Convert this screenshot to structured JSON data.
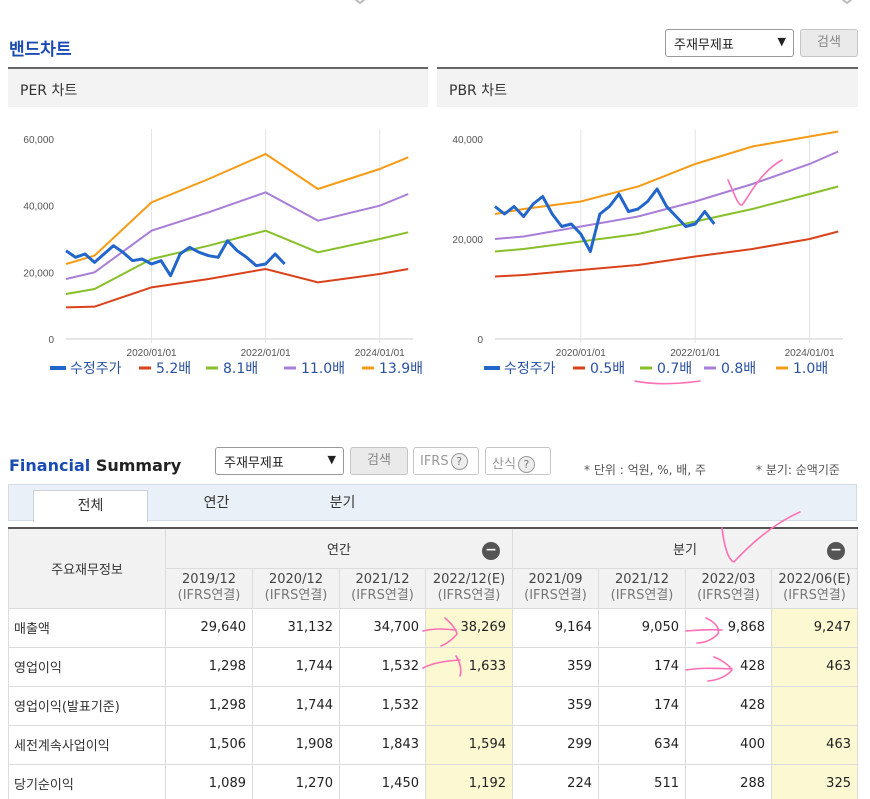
{
  "band": {
    "title": "밴드차트",
    "select_value": "주재무제표",
    "search_label": "검색"
  },
  "per_chart": {
    "title": "PER 차트",
    "yticks": [
      "60,000",
      "40,000",
      "20,000",
      "0"
    ],
    "xticks": [
      "2020/01/01",
      "2022/01/01",
      "2024/01/01"
    ],
    "legend": [
      "수정주가",
      "5.2배",
      "8.1배",
      "11.0배",
      "13.9배"
    ]
  },
  "pbr_chart": {
    "title": "PBR 차트",
    "yticks": [
      "40,000",
      "20,000",
      "0"
    ],
    "xticks": [
      "2020/01/01",
      "2022/01/01",
      "2024/01/01"
    ],
    "legend": [
      "수정주가",
      "0.5배",
      "0.7배",
      "0.8배",
      "1.0배"
    ]
  },
  "colors": {
    "price": "#2266cc",
    "band1": "#d9421a",
    "band2": "#88c02a",
    "band3": "#a97ed8",
    "band4": "#f59b16",
    "accent": "#1a4bb5",
    "annotation": "#ff6fb5"
  },
  "chart_data": [
    {
      "type": "line",
      "title": "PER 차트",
      "x": [
        "2018/07",
        "2019/01",
        "2020/01",
        "2021/01",
        "2022/01",
        "2022/12",
        "2024/01",
        "2024/07"
      ],
      "ylim": [
        0,
        60000
      ],
      "series": [
        {
          "name": "5.2배",
          "values": [
            9500,
            9700,
            15500,
            18000,
            21000,
            17000,
            19500,
            21000
          ]
        },
        {
          "name": "8.1배",
          "values": [
            13500,
            15000,
            24000,
            28000,
            32500,
            26000,
            30000,
            32000
          ]
        },
        {
          "name": "11.0배",
          "values": [
            18000,
            20000,
            32500,
            38000,
            44000,
            35500,
            40000,
            43500
          ]
        },
        {
          "name": "13.9배",
          "values": [
            22500,
            25000,
            41000,
            48000,
            55500,
            45000,
            51000,
            54500
          ]
        }
      ],
      "price": {
        "name": "수정주가",
        "x": [
          "2018/07",
          "2018/09",
          "2018/11",
          "2019/01",
          "2019/03",
          "2019/05",
          "2019/07",
          "2019/09",
          "2019/11",
          "2020/01",
          "2020/03",
          "2020/05",
          "2020/07",
          "2020/09",
          "2020/11",
          "2021/01",
          "2021/03",
          "2021/05",
          "2021/07",
          "2021/09",
          "2021/11",
          "2022/01",
          "2022/03",
          "2022/05"
        ],
        "values": [
          26500,
          24500,
          25500,
          23000,
          25500,
          28000,
          26000,
          23500,
          24000,
          22500,
          23500,
          19000,
          25500,
          27500,
          26000,
          25000,
          24500,
          29500,
          26500,
          24500,
          22000,
          22500,
          25500,
          22500
        ]
      }
    },
    {
      "type": "line",
      "title": "PBR 차트",
      "x": [
        "2018/07",
        "2019/01",
        "2020/01",
        "2021/01",
        "2022/01",
        "2023/01",
        "2024/01",
        "2024/07"
      ],
      "ylim": [
        0,
        40000
      ],
      "series": [
        {
          "name": "0.5배",
          "values": [
            12500,
            12800,
            13800,
            14800,
            16500,
            18000,
            20000,
            21500
          ]
        },
        {
          "name": "0.7배",
          "values": [
            17500,
            18000,
            19500,
            21000,
            23500,
            26000,
            29000,
            30500
          ]
        },
        {
          "name": "0.8배",
          "values": [
            20000,
            20500,
            22500,
            24500,
            27500,
            31000,
            35000,
            37500
          ]
        },
        {
          "name": "1.0배",
          "values": [
            25000,
            26000,
            27500,
            30500,
            35000,
            38500,
            40500,
            41500
          ]
        }
      ],
      "price": {
        "name": "수정주가",
        "x": [
          "2018/07",
          "2018/09",
          "2018/11",
          "2019/01",
          "2019/03",
          "2019/05",
          "2019/07",
          "2019/09",
          "2019/11",
          "2020/01",
          "2020/03",
          "2020/05",
          "2020/07",
          "2020/09",
          "2020/11",
          "2021/01",
          "2021/03",
          "2021/05",
          "2021/07",
          "2021/09",
          "2021/11",
          "2022/01",
          "2022/03",
          "2022/05"
        ],
        "values": [
          26500,
          25000,
          26500,
          24500,
          27000,
          28500,
          25000,
          22500,
          23000,
          21000,
          17500,
          25000,
          26500,
          29000,
          25500,
          26000,
          27500,
          30000,
          26500,
          24500,
          22500,
          23000,
          25500,
          23000
        ]
      }
    }
  ],
  "fs": {
    "title_a": "Financial",
    "title_b": "Summary",
    "select_value": "주재무제표",
    "search_label": "검색",
    "ifrs_label": "IFRS",
    "calc_label": "산식",
    "unit_note": "* 단위 : 억원, %, 배, 주",
    "basis_note": "* 분기: 순액기준",
    "tabs": [
      "전체",
      "연간",
      "분기"
    ],
    "row_header": "주요재무정보",
    "group_annual": "연간",
    "group_quarter": "분기",
    "columns": [
      {
        "period": "2019/12",
        "basis": "(IFRS연결)"
      },
      {
        "period": "2020/12",
        "basis": "(IFRS연결)"
      },
      {
        "period": "2021/12",
        "basis": "(IFRS연결)"
      },
      {
        "period": "2022/12(E)",
        "basis": "(IFRS연결)"
      },
      {
        "period": "2021/09",
        "basis": "(IFRS연결)"
      },
      {
        "period": "2021/12",
        "basis": "(IFRS연결)"
      },
      {
        "period": "2022/03",
        "basis": "(IFRS연결)"
      },
      {
        "period": "2022/06(E)",
        "basis": "(IFRS연결)"
      }
    ],
    "rows": [
      {
        "label": "매출액",
        "values": [
          "29,640",
          "31,132",
          "34,700",
          "38,269",
          "9,164",
          "9,050",
          "9,868",
          "9,247"
        ]
      },
      {
        "label": "영업이익",
        "values": [
          "1,298",
          "1,744",
          "1,532",
          "1,633",
          "359",
          "174",
          "428",
          "463"
        ]
      },
      {
        "label": "영업이익(발표기준)",
        "values": [
          "1,298",
          "1,744",
          "1,532",
          "",
          "359",
          "174",
          "428",
          ""
        ]
      },
      {
        "label": "세전계속사업이익",
        "values": [
          "1,506",
          "1,908",
          "1,843",
          "1,594",
          "299",
          "634",
          "400",
          "463"
        ]
      },
      {
        "label": "당기순이익",
        "values": [
          "1,089",
          "1,270",
          "1,450",
          "1,192",
          "224",
          "511",
          "288",
          "325"
        ]
      }
    ]
  }
}
